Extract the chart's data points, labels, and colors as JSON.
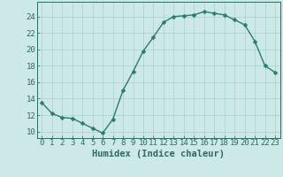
{
  "x": [
    0,
    1,
    2,
    3,
    4,
    5,
    6,
    7,
    8,
    9,
    10,
    11,
    12,
    13,
    14,
    15,
    16,
    17,
    18,
    19,
    20,
    21,
    22,
    23
  ],
  "y": [
    13.5,
    12.2,
    11.7,
    11.6,
    11.0,
    10.4,
    9.8,
    11.5,
    15.0,
    17.3,
    19.8,
    21.5,
    23.3,
    24.0,
    24.1,
    24.2,
    24.6,
    24.4,
    24.2,
    23.6,
    23.0,
    21.0,
    18.0,
    17.2
  ],
  "line_color": "#2d7a6e",
  "marker": "D",
  "marker_size": 2.5,
  "background_color": "#cce9e7",
  "grid_color": "#afd4d0",
  "xlabel": "Humidex (Indice chaleur)",
  "xlim": [
    -0.5,
    23.5
  ],
  "ylim": [
    9.2,
    25.8
  ],
  "yticks": [
    10,
    12,
    14,
    16,
    18,
    20,
    22,
    24
  ],
  "xticks": [
    0,
    1,
    2,
    3,
    4,
    5,
    6,
    7,
    8,
    9,
    10,
    11,
    12,
    13,
    14,
    15,
    16,
    17,
    18,
    19,
    20,
    21,
    22,
    23
  ],
  "tick_color": "#2d6b60",
  "label_fontsize": 6.5,
  "xlabel_fontsize": 7.5,
  "line_width": 1.0
}
